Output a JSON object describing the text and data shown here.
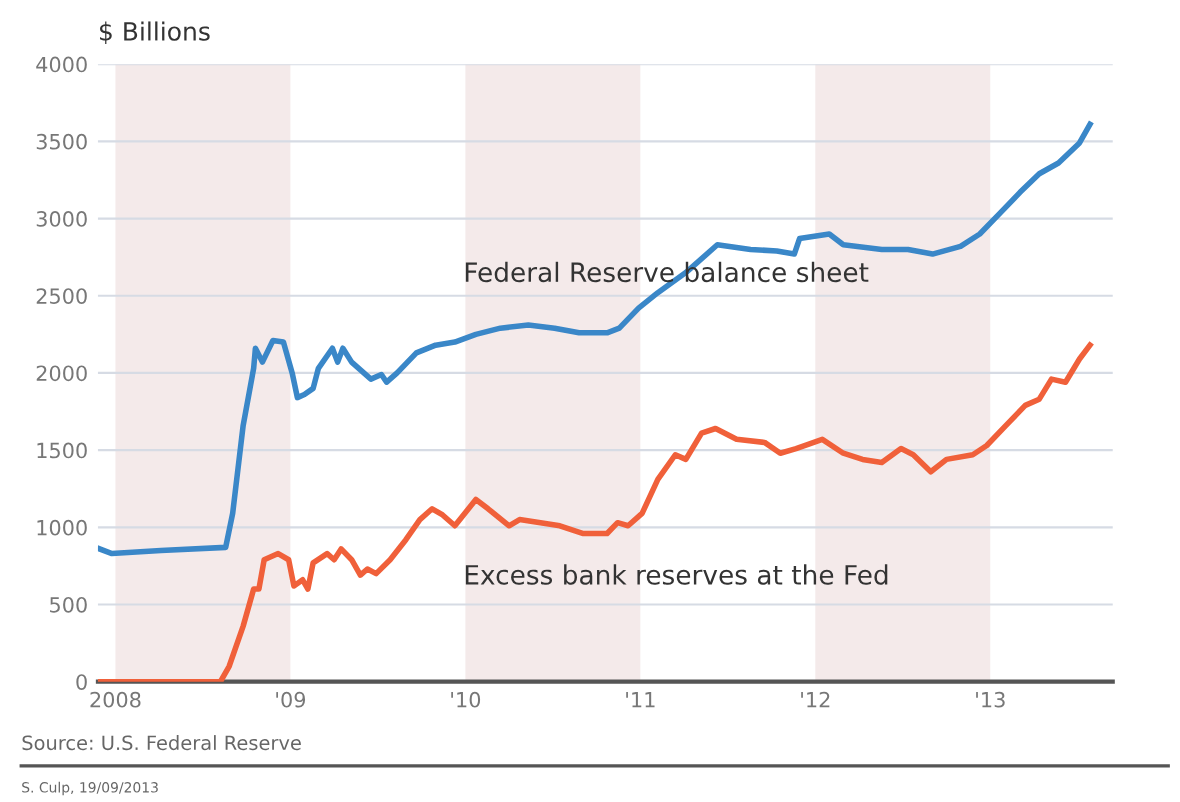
{
  "chart_data": {
    "type": "line",
    "ylabel": "$ Billions",
    "xlim": [
      2007.9,
      2013.7
    ],
    "xticks": [
      {
        "value": 2008,
        "label": "2008"
      },
      {
        "value": 2009,
        "label": "'09"
      },
      {
        "value": 2010,
        "label": "'10"
      },
      {
        "value": 2011,
        "label": "'11"
      },
      {
        "value": 2012,
        "label": "'12"
      },
      {
        "value": 2013,
        "label": "'13"
      }
    ],
    "ylim": [
      0,
      4000
    ],
    "yticks": [
      0,
      500,
      1000,
      1500,
      2000,
      2500,
      3000,
      3500,
      4000
    ],
    "grid": "y",
    "legend": false,
    "marker": "none",
    "line_style": "solid",
    "bands": [
      {
        "axis": "x",
        "from": 2008,
        "to": 2009,
        "color": "#f4eaea"
      },
      {
        "axis": "x",
        "from": 2010,
        "to": 2011,
        "color": "#f4eaea"
      },
      {
        "axis": "x",
        "from": 2012,
        "to": 2013,
        "color": "#f4eaea"
      }
    ],
    "series": [
      {
        "name": "Federal Reserve balance sheet",
        "color": "#3a87c8",
        "x": [
          2007.91,
          2007.98,
          2008.26,
          2008.63,
          2008.67,
          2008.73,
          2008.79,
          2008.8,
          2008.84,
          2008.9,
          2008.96,
          2009.01,
          2009.04,
          2009.08,
          2009.13,
          2009.16,
          2009.24,
          2009.27,
          2009.3,
          2009.35,
          2009.46,
          2009.52,
          2009.55,
          2009.61,
          2009.72,
          2009.83,
          2009.94,
          2010.06,
          2010.2,
          2010.36,
          2010.51,
          2010.65,
          2010.81,
          2010.88,
          2010.99,
          2011.1,
          2011.26,
          2011.44,
          2011.63,
          2011.78,
          2011.88,
          2011.91,
          2012.08,
          2012.16,
          2012.38,
          2012.53,
          2012.67,
          2012.83,
          2012.94,
          2013.06,
          2013.17,
          2013.28,
          2013.39,
          2013.51,
          2013.57
        ],
        "values": [
          860,
          830,
          850,
          870,
          1090,
          1660,
          2030,
          2160,
          2070,
          2210,
          2200,
          2000,
          1840,
          1860,
          1900,
          2030,
          2160,
          2070,
          2160,
          2070,
          1960,
          1990,
          1940,
          2000,
          2130,
          2180,
          2200,
          2250,
          2290,
          2310,
          2290,
          2260,
          2260,
          2290,
          2420,
          2520,
          2650,
          2830,
          2800,
          2790,
          2770,
          2870,
          2900,
          2830,
          2800,
          2800,
          2770,
          2820,
          2900,
          3040,
          3170,
          3290,
          3360,
          3490,
          3610
        ]
      },
      {
        "name": "Excess bank reserves at the Fed",
        "color": "#f0603a",
        "x": [
          2007.91,
          2008.6,
          2008.65,
          2008.73,
          2008.79,
          2008.82,
          2008.85,
          2008.93,
          2008.99,
          2009.02,
          2009.07,
          2009.1,
          2009.13,
          2009.21,
          2009.25,
          2009.29,
          2009.35,
          2009.4,
          2009.44,
          2009.49,
          2009.57,
          2009.66,
          2009.74,
          2009.81,
          2009.87,
          2009.94,
          2010.06,
          2010.13,
          2010.25,
          2010.31,
          2010.54,
          2010.67,
          2010.81,
          2010.87,
          2010.93,
          2011.01,
          2011.1,
          2011.2,
          2011.26,
          2011.35,
          2011.43,
          2011.55,
          2011.71,
          2011.8,
          2011.89,
          2012.04,
          2012.16,
          2012.27,
          2012.38,
          2012.49,
          2012.56,
          2012.66,
          2012.75,
          2012.9,
          2012.98,
          2013.09,
          2013.2,
          2013.28,
          2013.35,
          2013.43,
          2013.51,
          2013.57
        ],
        "values": [
          0,
          0,
          100,
          360,
          600,
          600,
          790,
          830,
          790,
          620,
          660,
          600,
          770,
          830,
          790,
          860,
          790,
          690,
          730,
          700,
          790,
          920,
          1050,
          1120,
          1080,
          1010,
          1180,
          1120,
          1010,
          1050,
          1010,
          960,
          960,
          1030,
          1010,
          1090,
          1310,
          1470,
          1440,
          1610,
          1640,
          1570,
          1550,
          1480,
          1510,
          1570,
          1480,
          1440,
          1420,
          1510,
          1470,
          1360,
          1440,
          1470,
          1530,
          1660,
          1790,
          1830,
          1960,
          1940,
          2090,
          2180
        ]
      }
    ],
    "annotations": [
      "Source: U.S. Federal Reserve",
      "S. Culp, 19/09/2013"
    ]
  }
}
